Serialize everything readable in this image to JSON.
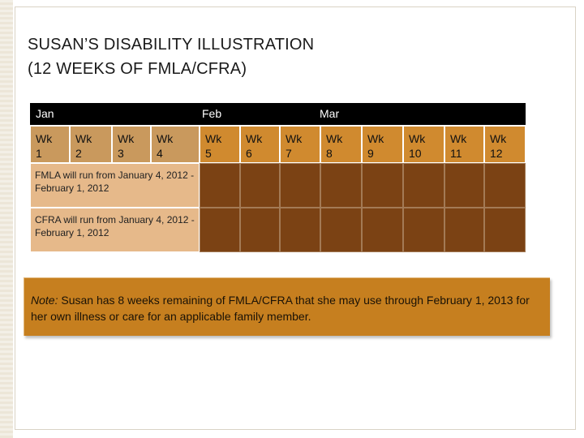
{
  "title": {
    "line1": "SUSAN’S DISABILITY ILLUSTRATION",
    "line2": "(12 WEEKS OF FMLA/CFRA)"
  },
  "months": [
    "Jan",
    "Feb",
    "Mar"
  ],
  "weeks": [
    {
      "a": "Wk",
      "b": "1"
    },
    {
      "a": "Wk",
      "b": "2"
    },
    {
      "a": "Wk",
      "b": "3"
    },
    {
      "a": "Wk",
      "b": "4"
    },
    {
      "a": "Wk",
      "b": "5"
    },
    {
      "a": "Wk",
      "b": "6"
    },
    {
      "a": "Wk",
      "b": "7"
    },
    {
      "a": "Wk",
      "b": "8"
    },
    {
      "a": "Wk",
      "b": "9"
    },
    {
      "a": "Wk",
      "b": "10"
    },
    {
      "a": "Wk",
      "b": "11"
    },
    {
      "a": "Wk",
      "b": "12"
    }
  ],
  "rows": {
    "fmla": "FMLA will run from  January 4, 2012 - February 1, 2012",
    "cfra": "CFRA will run from  January 4, 2012 - February 1, 2012"
  },
  "note": {
    "lead": "Note:",
    "text": " Susan has 8 weeks remaining of FMLA/CFRA that she may use through February 1, 2013 for her own illness or care for an applicable family member."
  },
  "colors": {
    "used_weeks": "#7b4214",
    "header_cells": "#c9995d",
    "note_box": "#c67f1f"
  }
}
